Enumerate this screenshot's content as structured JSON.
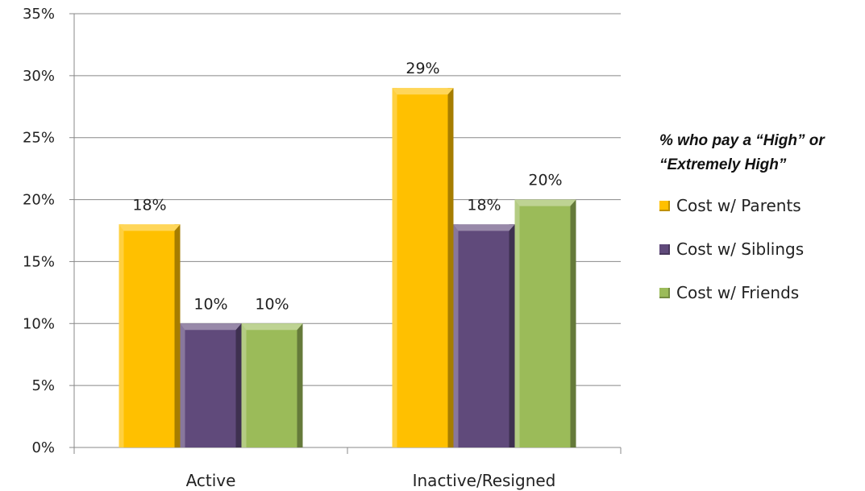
{
  "chart_data": {
    "type": "bar",
    "categories": [
      "Active",
      "Inactive/Resigned"
    ],
    "series": [
      {
        "name": "Cost w/ Parents",
        "values": [
          18,
          29
        ],
        "data_labels": [
          "18%",
          "29%"
        ],
        "color": "#FFC000"
      },
      {
        "name": "Cost w/ Siblings",
        "values": [
          10,
          18
        ],
        "data_labels": [
          "10%",
          "18%"
        ],
        "color": "#604A7B"
      },
      {
        "name": "Cost w/ Friends",
        "values": [
          10,
          20
        ],
        "data_labels": [
          "10%",
          "20%"
        ],
        "color": "#9BBB59"
      }
    ],
    "ylim": [
      0,
      35
    ],
    "yticks": [
      0,
      5,
      10,
      15,
      20,
      25,
      30,
      35
    ],
    "ytick_labels": [
      "0%",
      "5%",
      "10%",
      "15%",
      "20%",
      "25%",
      "30%",
      "35%"
    ],
    "grid": true,
    "legend_title_lines": [
      "% who pay a “High” or",
      "“Extremely High”"
    ],
    "legend_position": "right"
  }
}
